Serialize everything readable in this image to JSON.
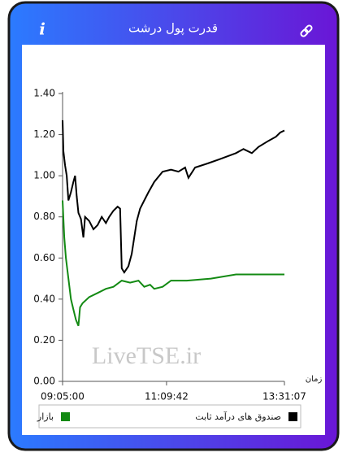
{
  "header": {
    "title": "قدرت پول درشت",
    "info": "i"
  },
  "chart_data": {
    "type": "line",
    "x_label": "زمان",
    "watermark": "LiveTSE.ir",
    "xlim": [
      "09:05:00",
      "13:31:07"
    ],
    "xticks": [
      "09:05:00",
      "11:09:42",
      "13:31:07"
    ],
    "ylim": [
      0,
      1.4
    ],
    "yticks": [
      {
        "value": 0,
        "label": "0.00"
      },
      {
        "value": 0.2,
        "label": "0.20"
      },
      {
        "value": 0.4,
        "label": "0.40"
      },
      {
        "value": 0.6,
        "label": "0.60"
      },
      {
        "value": 0.8,
        "label": "0.80"
      },
      {
        "value": 1,
        "label": "1.00"
      },
      {
        "value": 1.2,
        "label": "1.20"
      },
      {
        "value": 1.4,
        "label": "1.40"
      }
    ],
    "series": [
      {
        "name": "صندوق های درآمد ثابت",
        "color": "#000000",
        "x": [
          "09:05:00",
          "09:06:00",
          "09:08:00",
          "09:10:00",
          "09:12:00",
          "09:15:00",
          "09:18:00",
          "09:20:00",
          "09:22:00",
          "09:24:00",
          "09:27:00",
          "09:30:00",
          "09:32:00",
          "09:37:00",
          "09:42:00",
          "09:47:00",
          "09:52:00",
          "09:57:00",
          "10:01:00",
          "10:06:00",
          "10:11:00",
          "10:14:00",
          "10:16:00",
          "10:19:00",
          "10:24:00",
          "10:28:00",
          "10:31:00",
          "10:34:00",
          "10:38:00",
          "10:43:00",
          "10:48:00",
          "10:55:00",
          "11:05:00",
          "11:15:00",
          "11:24:00",
          "11:32:00",
          "11:36:00",
          "11:44:00",
          "11:59:00",
          "12:13:00",
          "12:33:00",
          "12:42:00",
          "12:52:00",
          "13:00:00",
          "13:12:00",
          "13:21:00",
          "13:26:00",
          "13:31:07"
        ],
        "values": [
          1.27,
          1.12,
          1.05,
          1.0,
          0.88,
          0.92,
          0.97,
          1.0,
          0.9,
          0.82,
          0.79,
          0.7,
          0.8,
          0.78,
          0.74,
          0.76,
          0.8,
          0.77,
          0.8,
          0.83,
          0.85,
          0.84,
          0.55,
          0.53,
          0.56,
          0.62,
          0.7,
          0.78,
          0.84,
          0.88,
          0.92,
          0.97,
          1.02,
          1.03,
          1.02,
          1.04,
          0.99,
          1.04,
          1.06,
          1.08,
          1.11,
          1.13,
          1.11,
          1.14,
          1.17,
          1.19,
          1.21,
          1.22
        ]
      },
      {
        "name": "بازار",
        "color": "#138a13",
        "x": [
          "09:05:00",
          "09:07:00",
          "09:09:00",
          "09:12:00",
          "09:15:00",
          "09:18:00",
          "09:21:00",
          "09:24:00",
          "09:26:00",
          "09:29:00",
          "09:37:00",
          "09:47:00",
          "09:57:00",
          "10:06:00",
          "10:16:00",
          "10:26:00",
          "10:36:00",
          "10:43:00",
          "10:50:00",
          "10:55:00",
          "11:05:00",
          "11:15:00",
          "11:34:00",
          "12:03:00",
          "12:33:00",
          "13:02:00",
          "13:31:07"
        ],
        "values": [
          0.88,
          0.7,
          0.6,
          0.5,
          0.4,
          0.35,
          0.3,
          0.27,
          0.36,
          0.38,
          0.41,
          0.43,
          0.45,
          0.46,
          0.49,
          0.48,
          0.49,
          0.46,
          0.47,
          0.45,
          0.46,
          0.49,
          0.49,
          0.5,
          0.52,
          0.52,
          0.52
        ]
      }
    ]
  }
}
